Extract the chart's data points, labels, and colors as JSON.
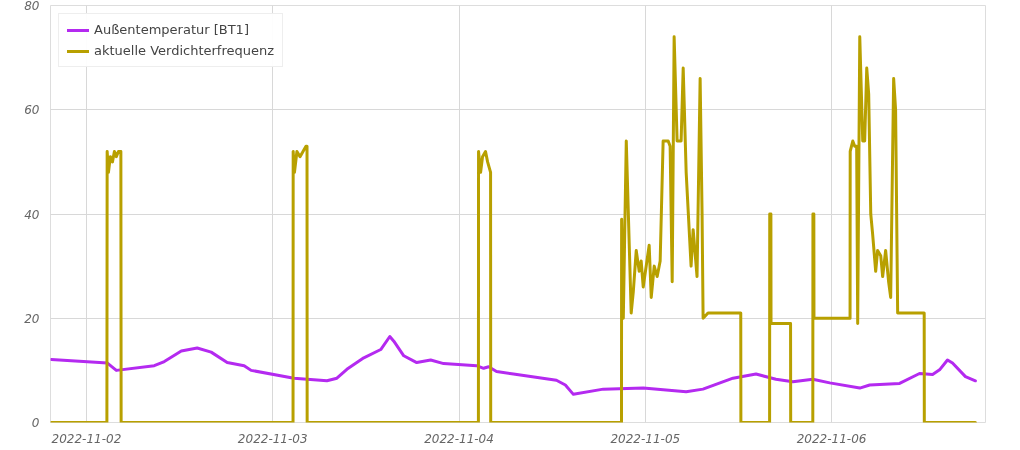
{
  "chart_data": {
    "type": "line",
    "xlim": [
      "2022-11-01T19:22",
      "2022-11-06T19:50"
    ],
    "ylim": [
      0,
      80
    ],
    "xticks": [
      "2022-11-02",
      "2022-11-03",
      "2022-11-04",
      "2022-11-05",
      "2022-11-06"
    ],
    "yticks": [
      0,
      20,
      40,
      60,
      80
    ],
    "grid": true,
    "legend": "top left",
    "line_style": "solid",
    "marker": "none",
    "series": [
      {
        "name": "Außentemperatur [BT1]",
        "color": "#b42af0",
        "x": [
          "2022-11-01T19:28",
          "2022-11-02T02:42",
          "2022-11-02T03:51",
          "2022-11-02T08:44",
          "2022-11-02T10:02",
          "2022-11-02T12:13",
          "2022-11-02T14:16",
          "2022-11-02T16:04",
          "2022-11-02T18:08",
          "2022-11-02T20:19",
          "2022-11-02T21:13",
          "2022-11-03T02:44",
          "2022-11-03T06:59",
          "2022-11-03T08:16",
          "2022-11-03T09:33",
          "2022-11-03T11:44",
          "2022-11-03T13:55",
          "2022-11-03T15:05",
          "2022-11-03T15:36",
          "2022-11-03T16:53",
          "2022-11-03T18:33",
          "2022-11-03T20:21",
          "2022-11-03T22:01",
          "2022-11-04T02:16",
          "2022-11-04T03:10",
          "2022-11-04T03:49",
          "2022-11-04T04:50",
          "2022-11-04T07:01",
          "2022-11-04T12:33",
          "2022-11-04T13:42",
          "2022-11-04T14:44",
          "2022-11-04T18:35",
          "2022-11-04T23:44",
          "2022-11-05T05:16",
          "2022-11-05T07:26",
          "2022-11-05T11:18",
          "2022-11-05T14:16",
          "2022-11-05T16:50",
          "2022-11-05T19:01",
          "2022-11-05T21:35",
          "2022-11-05T23:46",
          "2022-11-06T03:38",
          "2022-11-06T04:55",
          "2022-11-06T08:46",
          "2022-11-06T11:20",
          "2022-11-06T13:01",
          "2022-11-06T13:55",
          "2022-11-06T14:56",
          "2022-11-06T15:35",
          "2022-11-06T17:15",
          "2022-11-06T18:32"
        ],
        "values": [
          12.1,
          11.4,
          10.0,
          10.9,
          11.7,
          13.7,
          14.3,
          13.5,
          11.5,
          10.9,
          10.0,
          8.5,
          8.0,
          8.5,
          10.2,
          12.4,
          14.0,
          16.5,
          15.6,
          12.8,
          11.5,
          12.0,
          11.3,
          10.9,
          10.4,
          10.7,
          9.8,
          9.3,
          8.1,
          7.2,
          5.4,
          6.4,
          6.6,
          5.9,
          6.4,
          8.5,
          9.3,
          8.3,
          7.8,
          8.3,
          7.6,
          6.6,
          7.2,
          7.5,
          9.4,
          9.2,
          10.1,
          12.0,
          11.4,
          8.8,
          8.0
        ]
      },
      {
        "name": "aktuelle Verdichterfrequenz",
        "color": "#b8a000",
        "x": [
          "2022-11-01T19:28",
          "2022-11-02T02:38",
          "2022-11-02T02:40",
          "2022-11-02T02:50",
          "2022-11-02T03:05",
          "2022-11-02T03:21",
          "2022-11-02T03:36",
          "2022-11-02T03:51",
          "2022-11-02T04:07",
          "2022-11-02T04:26",
          "2022-11-02T04:28",
          "2022-11-03T02:37",
          "2022-11-03T02:38",
          "2022-11-03T02:48",
          "2022-11-03T03:07",
          "2022-11-03T03:31",
          "2022-11-03T03:54",
          "2022-11-03T04:17",
          "2022-11-03T04:25",
          "2022-11-03T04:26",
          "2022-11-04T02:30",
          "2022-11-04T02:31",
          "2022-11-04T02:47",
          "2022-11-04T03:02",
          "2022-11-04T03:25",
          "2022-11-04T03:41",
          "2022-11-04T04:04",
          "2022-11-04T04:05",
          "2022-11-04T20:56",
          "2022-11-04T20:57",
          "2022-11-04T21:10",
          "2022-11-04T21:33",
          "2022-11-04T22:11",
          "2022-11-04T22:27",
          "2022-11-04T22:50",
          "2022-11-04T23:13",
          "2022-11-04T23:28",
          "2022-11-04T23:44",
          "2022-11-05T00:07",
          "2022-11-05T00:30",
          "2022-11-05T00:46",
          "2022-11-05T01:09",
          "2022-11-05T01:32",
          "2022-11-05T01:55",
          "2022-11-05T02:18",
          "2022-11-05T02:57",
          "2022-11-05T03:12",
          "2022-11-05T03:28",
          "2022-11-05T03:43",
          "2022-11-05T04:06",
          "2022-11-05T04:37",
          "2022-11-05T04:53",
          "2022-11-05T05:16",
          "2022-11-05T05:54",
          "2022-11-05T06:10",
          "2022-11-05T06:40",
          "2022-11-05T07:04",
          "2022-11-05T07:19",
          "2022-11-05T07:27",
          "2022-11-05T08:05",
          "2022-11-05T12:18",
          "2022-11-05T12:19",
          "2022-11-05T16:01",
          "2022-11-05T16:02",
          "2022-11-05T16:11",
          "2022-11-05T16:12",
          "2022-11-05T18:43",
          "2022-11-05T18:44",
          "2022-11-05T21:35",
          "2022-11-05T21:36",
          "2022-11-05T21:43",
          "2022-11-05T21:44",
          "2022-11-06T02:23",
          "2022-11-06T02:24",
          "2022-11-06T02:44",
          "2022-11-06T02:59",
          "2022-11-06T03:14",
          "2022-11-06T03:22",
          "2022-11-06T03:38",
          "2022-11-06T04:01",
          "2022-11-06T04:16",
          "2022-11-06T04:32",
          "2022-11-06T04:47",
          "2022-11-06T05:03",
          "2022-11-06T05:18",
          "2022-11-06T05:41",
          "2022-11-06T05:56",
          "2022-11-06T06:20",
          "2022-11-06T06:35",
          "2022-11-06T06:58",
          "2022-11-06T07:21",
          "2022-11-06T07:37",
          "2022-11-06T08:00",
          "2022-11-06T08:15",
          "2022-11-06T08:31",
          "2022-11-06T11:56",
          "2022-11-06T11:57",
          "2022-11-06T18:32"
        ],
        "values": [
          0,
          0,
          52,
          48,
          51,
          50,
          52,
          51,
          52,
          52,
          0,
          0,
          52,
          48,
          52,
          51,
          52,
          53,
          53,
          0,
          0,
          52,
          48,
          51,
          52,
          50,
          48,
          0,
          0,
          39,
          20,
          54,
          21,
          25,
          33,
          29,
          31,
          26,
          30,
          34,
          24,
          30,
          28,
          31,
          54,
          54,
          53,
          27,
          74,
          54,
          54,
          68,
          48,
          30,
          37,
          28,
          66,
          40,
          20,
          21,
          21,
          0,
          0,
          40,
          40,
          19,
          19,
          0,
          0,
          40,
          40,
          20,
          20,
          52,
          54,
          53,
          53,
          19,
          74,
          54,
          54,
          68,
          63,
          40,
          36,
          29,
          33,
          32,
          28,
          33,
          27,
          24,
          66,
          60,
          21,
          21,
          0,
          0
        ]
      }
    ]
  }
}
